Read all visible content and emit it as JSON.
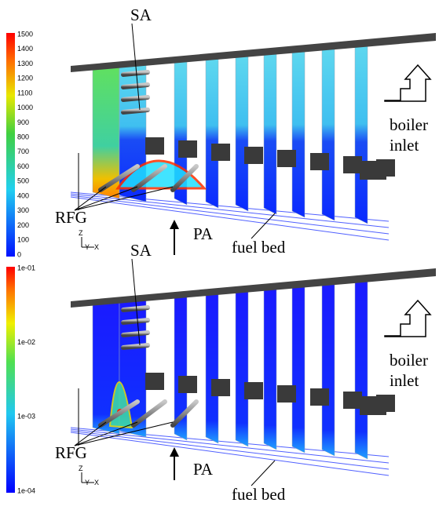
{
  "panels": [
    {
      "colorbar": {
        "labels": [
          "1500",
          "1400",
          "1300",
          "1200",
          "1100",
          "1000",
          "900",
          "800",
          "700",
          "600",
          "500",
          "400",
          "300",
          "200",
          "100",
          "0"
        ]
      },
      "labels": {
        "sa": "SA",
        "rfg": "RFG",
        "pa": "PA",
        "fuel_bed": "fuel bed",
        "boiler": "boiler",
        "inlet": "inlet"
      },
      "axes": {
        "z": "Z",
        "y": "Y",
        "x": "X"
      }
    },
    {
      "colorbar": {
        "labels": [
          "1e-01",
          "1e-02",
          "1e-03",
          "1e-04"
        ]
      },
      "labels": {
        "sa": "SA",
        "rfg": "RFG",
        "pa": "PA",
        "fuel_bed": "fuel bed",
        "boiler": "boiler",
        "inlet": "inlet"
      },
      "axes": {
        "z": "Z",
        "y": "Y",
        "x": "X"
      }
    }
  ]
}
